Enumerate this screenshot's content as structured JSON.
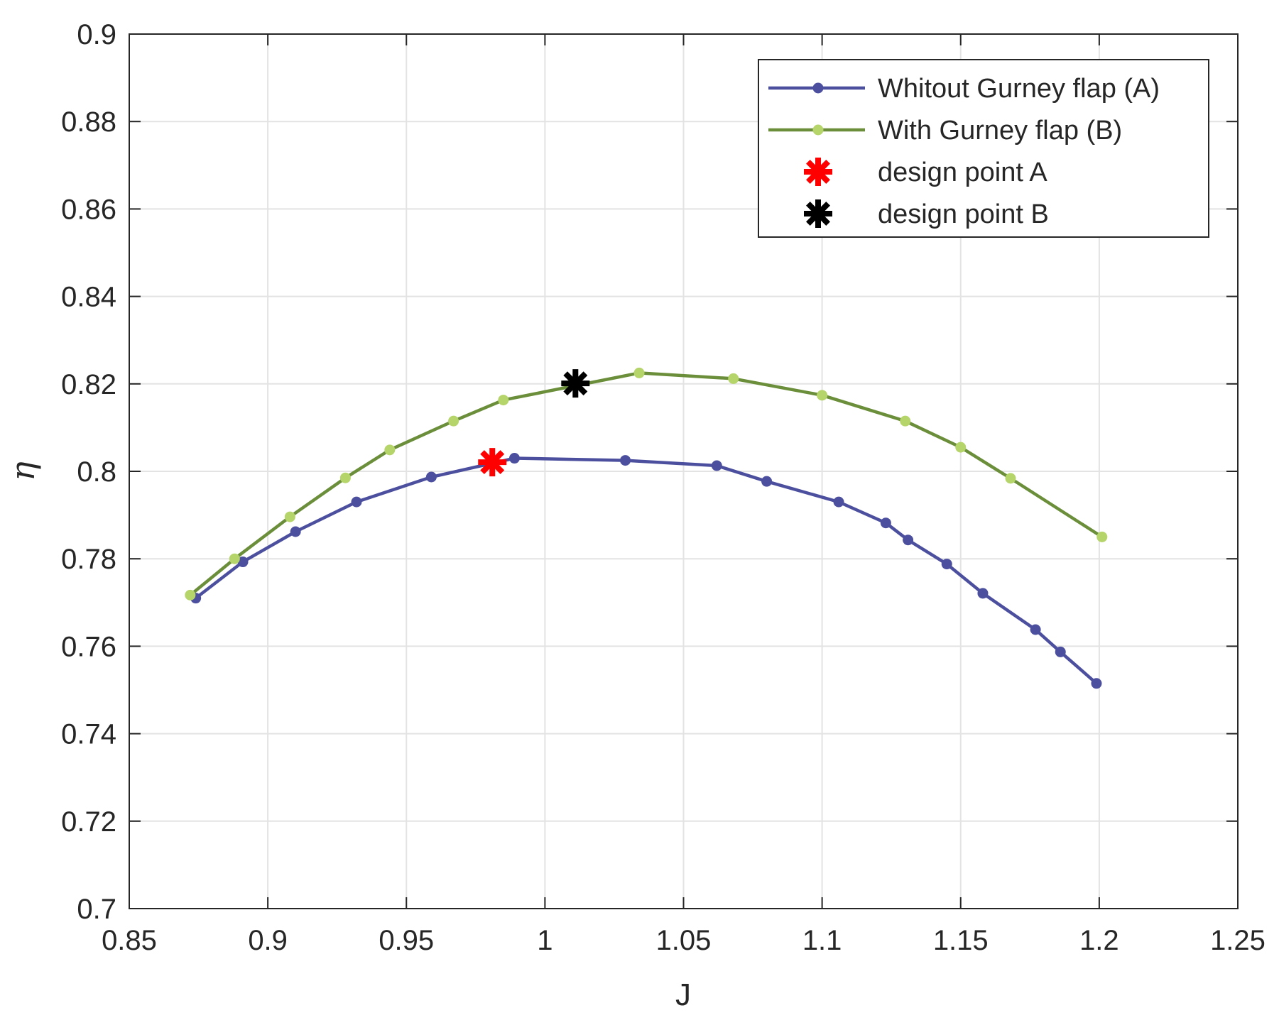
{
  "chart_data": {
    "type": "line",
    "title": "",
    "xlabel": "J",
    "ylabel": "η",
    "xlim": [
      0.85,
      1.25
    ],
    "ylim": [
      0.7,
      0.9
    ],
    "xticks": [
      0.85,
      0.9,
      0.95,
      1,
      1.05,
      1.1,
      1.15,
      1.2,
      1.25
    ],
    "yticks": [
      0.7,
      0.72,
      0.74,
      0.76,
      0.78,
      0.8,
      0.82,
      0.84,
      0.86,
      0.88,
      0.9
    ],
    "xtick_labels": [
      "0.85",
      "0.9",
      "0.95",
      "1",
      "1.05",
      "1.1",
      "1.15",
      "1.2",
      "1.25"
    ],
    "ytick_labels": [
      "0.7",
      "0.72",
      "0.74",
      "0.76",
      "0.78",
      "0.8",
      "0.82",
      "0.84",
      "0.86",
      "0.88",
      "0.9"
    ],
    "grid": true,
    "legend_position": "top-right",
    "series": [
      {
        "name": "Whitout Gurney flap (A)",
        "color": "#4B4F9E",
        "marker": "dot",
        "x": [
          0.874,
          0.891,
          0.91,
          0.932,
          0.959,
          0.989,
          1.029,
          1.062,
          1.08,
          1.106,
          1.123,
          1.131,
          1.145,
          1.158,
          1.177,
          1.186,
          1.199
        ],
        "y": [
          0.771,
          0.7793,
          0.7862,
          0.793,
          0.7987,
          0.803,
          0.8025,
          0.8013,
          0.7977,
          0.793,
          0.7882,
          0.7843,
          0.7788,
          0.7721,
          0.7638,
          0.7587,
          0.7515
        ]
      },
      {
        "name": "With Gurney flap (B)",
        "color": "#6B8E3A",
        "marker_color": "#B5D46A",
        "marker": "dot",
        "x": [
          0.872,
          0.888,
          0.908,
          0.928,
          0.944,
          0.967,
          0.985,
          1.034,
          1.068,
          1.1,
          1.13,
          1.15,
          1.168,
          1.201
        ],
        "y": [
          0.7717,
          0.78,
          0.7896,
          0.7985,
          0.8049,
          0.8115,
          0.8163,
          0.8225,
          0.8212,
          0.8174,
          0.8115,
          0.8055,
          0.7984,
          0.785
        ]
      }
    ],
    "points": [
      {
        "name": "design point A",
        "x": 0.981,
        "y": 0.8021,
        "color": "#FF0000",
        "marker": "asterisk"
      },
      {
        "name": "design point B",
        "x": 1.011,
        "y": 0.8201,
        "color": "#000000",
        "marker": "asterisk"
      }
    ]
  }
}
